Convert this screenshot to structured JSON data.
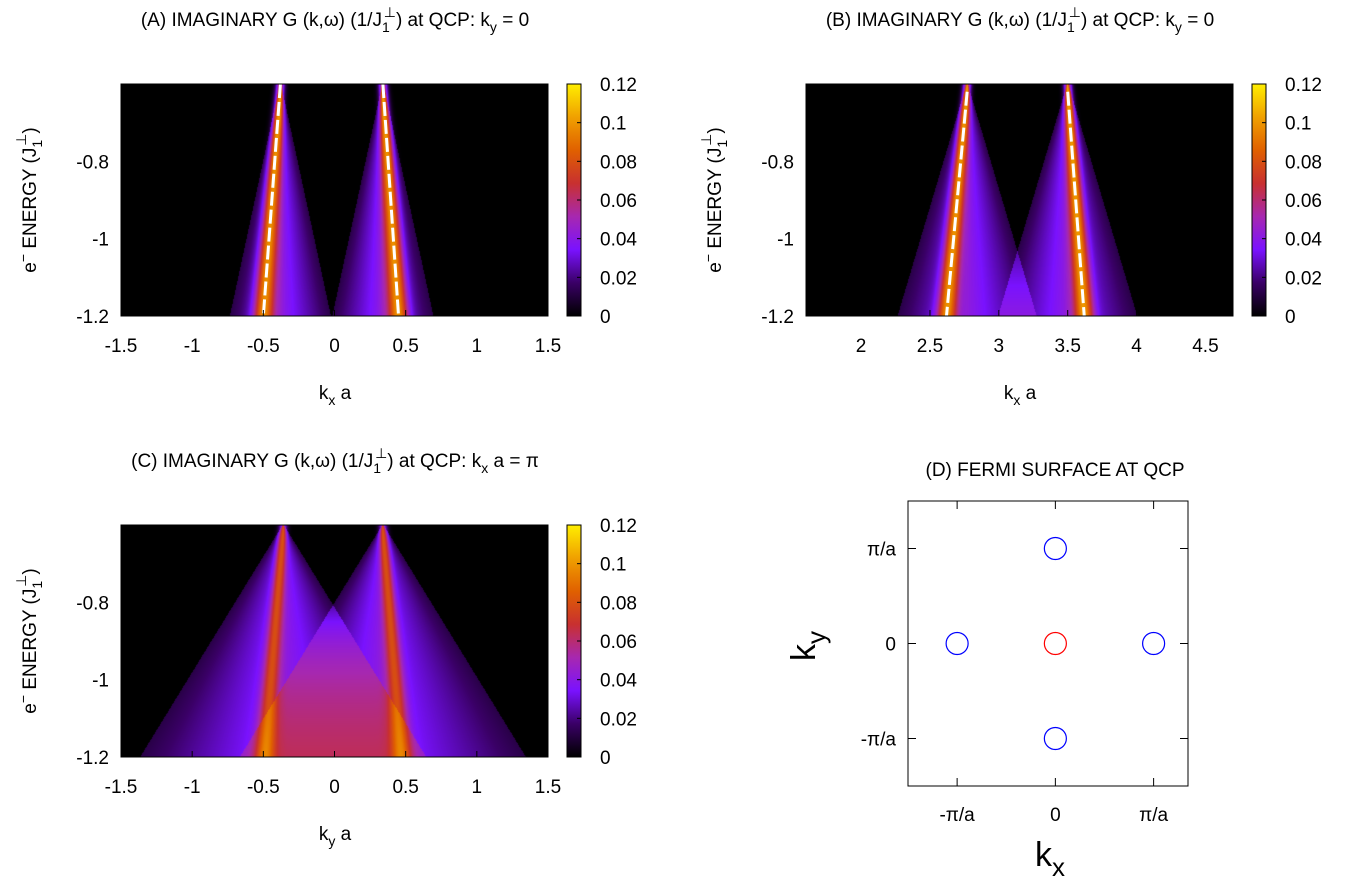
{
  "colorbar_ticks": [
    "0",
    "0.02",
    "0.04",
    "0.06",
    "0.08",
    "0.1",
    "0.12"
  ],
  "colormap": [
    "#000000",
    "#3a0066",
    "#7a12ff",
    "#a728b0",
    "#c83030",
    "#e06000",
    "#f0a000",
    "#ffee00"
  ],
  "chart_data": [
    {
      "type": "heatmap",
      "title": "(A) IMAGINARY G (k,ω) (1/J₁⊥) at QCP: kᵧ = 0",
      "title_parts": {
        "pre": "(A) IMAGINARY G (k,ω) (1/J",
        "sub": "1",
        "sup": "⊥",
        "post": ") at QCP: k",
        "sub2": "y",
        "tail": " = 0"
      },
      "xlabel": {
        "main": "k",
        "sub": "x",
        "tail": " a"
      },
      "ylabel": {
        "pre": "e",
        "sup": "−",
        "mid": " ENERGY (J",
        "sub": "1",
        "sup2": "⊥",
        "post": ")"
      },
      "xlim": [
        -1.5,
        1.5
      ],
      "ylim": [
        -1.2,
        -0.6
      ],
      "xticks": [
        -1.5,
        -1,
        -0.5,
        0,
        0.5,
        1,
        1.5
      ],
      "xtick_labels": [
        "-1.5",
        "-1",
        "-0.5",
        "0",
        "0.5",
        "1",
        "1.5"
      ],
      "yticks": [
        -1.2,
        -1,
        -0.8
      ],
      "ytick_labels": [
        "-1.2",
        "-1",
        "-0.8"
      ],
      "colorbar_range": [
        0,
        0.12
      ],
      "peaks": [
        {
          "k_top": -0.38,
          "k_bottom": -0.5,
          "e_top": -0.6,
          "e_bottom": -1.2,
          "apex_k": -0.38,
          "cone_halfwidth": 0.35,
          "peak": 0.12,
          "white": true
        },
        {
          "k_top": 0.34,
          "k_bottom": 0.45,
          "e_top": -0.6,
          "e_bottom": -1.2,
          "apex_k": 0.34,
          "cone_halfwidth": 0.35,
          "peak": 0.12,
          "white": true
        }
      ]
    },
    {
      "type": "heatmap",
      "title": "(B) IMAGINARY G (k,ω) (1/J₁⊥) at QCP: kᵧ = 0",
      "title_parts": {
        "pre": "(B) IMAGINARY G (k,ω) (1/J",
        "sub": "1",
        "sup": "⊥",
        "post": ") at QCP: k",
        "sub2": "y",
        "tail": " = 0"
      },
      "xlabel": {
        "main": "k",
        "sub": "x",
        "tail": " a"
      },
      "ylabel": {
        "pre": "e",
        "sup": "−",
        "mid": " ENERGY (J",
        "sub": "1",
        "sup2": "⊥",
        "post": ")"
      },
      "xlim": [
        1.6,
        4.7
      ],
      "ylim": [
        -1.2,
        -0.6
      ],
      "xticks": [
        2,
        2.5,
        3,
        3.5,
        4,
        4.5
      ],
      "xtick_labels": [
        "2",
        "2.5",
        "3",
        "3.5",
        "4",
        "4.5"
      ],
      "yticks": [
        -1.2,
        -1,
        -0.8
      ],
      "ytick_labels": [
        "-1.2",
        "-1",
        "-0.8"
      ],
      "colorbar_range": [
        0,
        0.12
      ],
      "peaks": [
        {
          "k_top": 2.77,
          "k_bottom": 2.62,
          "e_top": -0.62,
          "e_bottom": -1.2,
          "apex_k": 2.77,
          "cone_halfwidth": 0.5,
          "peak": 0.12,
          "white": true
        },
        {
          "k_top": 3.5,
          "k_bottom": 3.62,
          "e_top": -0.62,
          "e_bottom": -1.2,
          "apex_k": 3.5,
          "cone_halfwidth": 0.5,
          "peak": 0.12,
          "white": true
        }
      ]
    },
    {
      "type": "heatmap",
      "title": "(C) IMAGINARY G (k,ω) (1/J₁⊥) at QCP: kₓ a = π",
      "title_parts": {
        "pre": "(C) IMAGINARY G (k,ω) (1/J",
        "sub": "1",
        "sup": "⊥",
        "post": ") at QCP: k",
        "sub2": "x",
        "tail": " a = π"
      },
      "xlabel": {
        "main": "k",
        "sub": "y",
        "tail": " a"
      },
      "ylabel": {
        "pre": "e",
        "sup": "−",
        "mid": " ENERGY (J",
        "sub": "1",
        "sup2": "⊥",
        "post": ")"
      },
      "xlim": [
        -1.5,
        1.5
      ],
      "ylim": [
        -1.2,
        -0.6
      ],
      "xticks": [
        -1.5,
        -1,
        -0.5,
        0,
        0.5,
        1,
        1.5
      ],
      "xtick_labels": [
        "-1.5",
        "-1",
        "-0.5",
        "0",
        "0.5",
        "1",
        "1.5"
      ],
      "yticks": [
        -1.2,
        -1,
        -0.8
      ],
      "ytick_labels": [
        "-1.2",
        "-1",
        "-0.8"
      ],
      "colorbar_range": [
        0,
        0.12
      ],
      "peaks": [
        {
          "k_top": -0.36,
          "k_bottom": -0.49,
          "e_top": -0.6,
          "e_bottom": -1.2,
          "apex_k": -0.36,
          "cone_halfwidth": 1.0,
          "peak": 0.075,
          "white": false
        },
        {
          "k_top": 0.34,
          "k_bottom": 0.47,
          "e_top": -0.6,
          "e_bottom": -1.2,
          "apex_k": 0.34,
          "cone_halfwidth": 1.0,
          "peak": 0.075,
          "white": false
        }
      ]
    },
    {
      "type": "scatter",
      "title": "(D) FERMI SURFACE AT QCP",
      "xlabel": "k",
      "xlabel_sub": "x",
      "ylabel": "k",
      "ylabel_sub": "y",
      "xlim": [
        -1.5,
        1.35
      ],
      "ylim": [
        -1.5,
        1.5
      ],
      "xtick_labels": [
        "-π/a",
        "0",
        "π/a"
      ],
      "ytick_labels": [
        "-π/a",
        "0",
        "π/a"
      ],
      "ticks": [
        -1,
        0,
        1
      ],
      "series": [
        {
          "color": "#ff0000",
          "points": [
            [
              0,
              0
            ]
          ]
        },
        {
          "color": "#0000ff",
          "points": [
            [
              -1,
              0
            ],
            [
              1,
              0
            ],
            [
              0,
              1
            ],
            [
              0,
              -1
            ]
          ]
        }
      ]
    }
  ]
}
